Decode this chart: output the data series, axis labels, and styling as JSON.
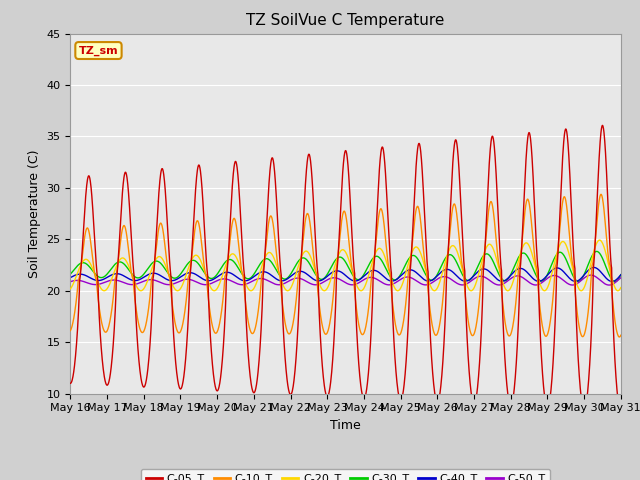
{
  "title": "TZ SoilVue C Temperature",
  "xlabel": "Time",
  "ylabel": "Soil Temperature (C)",
  "ylim": [
    10,
    45
  ],
  "yticks": [
    10,
    15,
    20,
    25,
    30,
    35,
    40,
    45
  ],
  "date_labels": [
    "May 16",
    "May 17",
    "May 18",
    "May 19",
    "May 20",
    "May 21",
    "May 22",
    "May 23",
    "May 24",
    "May 25",
    "May 26",
    "May 27",
    "May 28",
    "May 29",
    "May 30",
    "May 31"
  ],
  "series": {
    "C-05_T": {
      "color": "#CC0000",
      "linewidth": 1.0
    },
    "C-10_T": {
      "color": "#FF8C00",
      "linewidth": 1.0
    },
    "C-20_T": {
      "color": "#FFD700",
      "linewidth": 1.0
    },
    "C-30_T": {
      "color": "#00CC00",
      "linewidth": 1.0
    },
    "C-40_T": {
      "color": "#0000CC",
      "linewidth": 1.0
    },
    "C-50_T": {
      "color": "#9900CC",
      "linewidth": 1.0
    }
  },
  "legend_label": "TZ_sm",
  "legend_bg": "#FFFFC0",
  "legend_border": "#CC8800",
  "fig_bg": "#D0D0D0",
  "plot_bg": "#E8E8E8",
  "grid_color": "#FFFFFF",
  "title_fontsize": 11,
  "axis_label_fontsize": 9,
  "tick_fontsize": 8
}
